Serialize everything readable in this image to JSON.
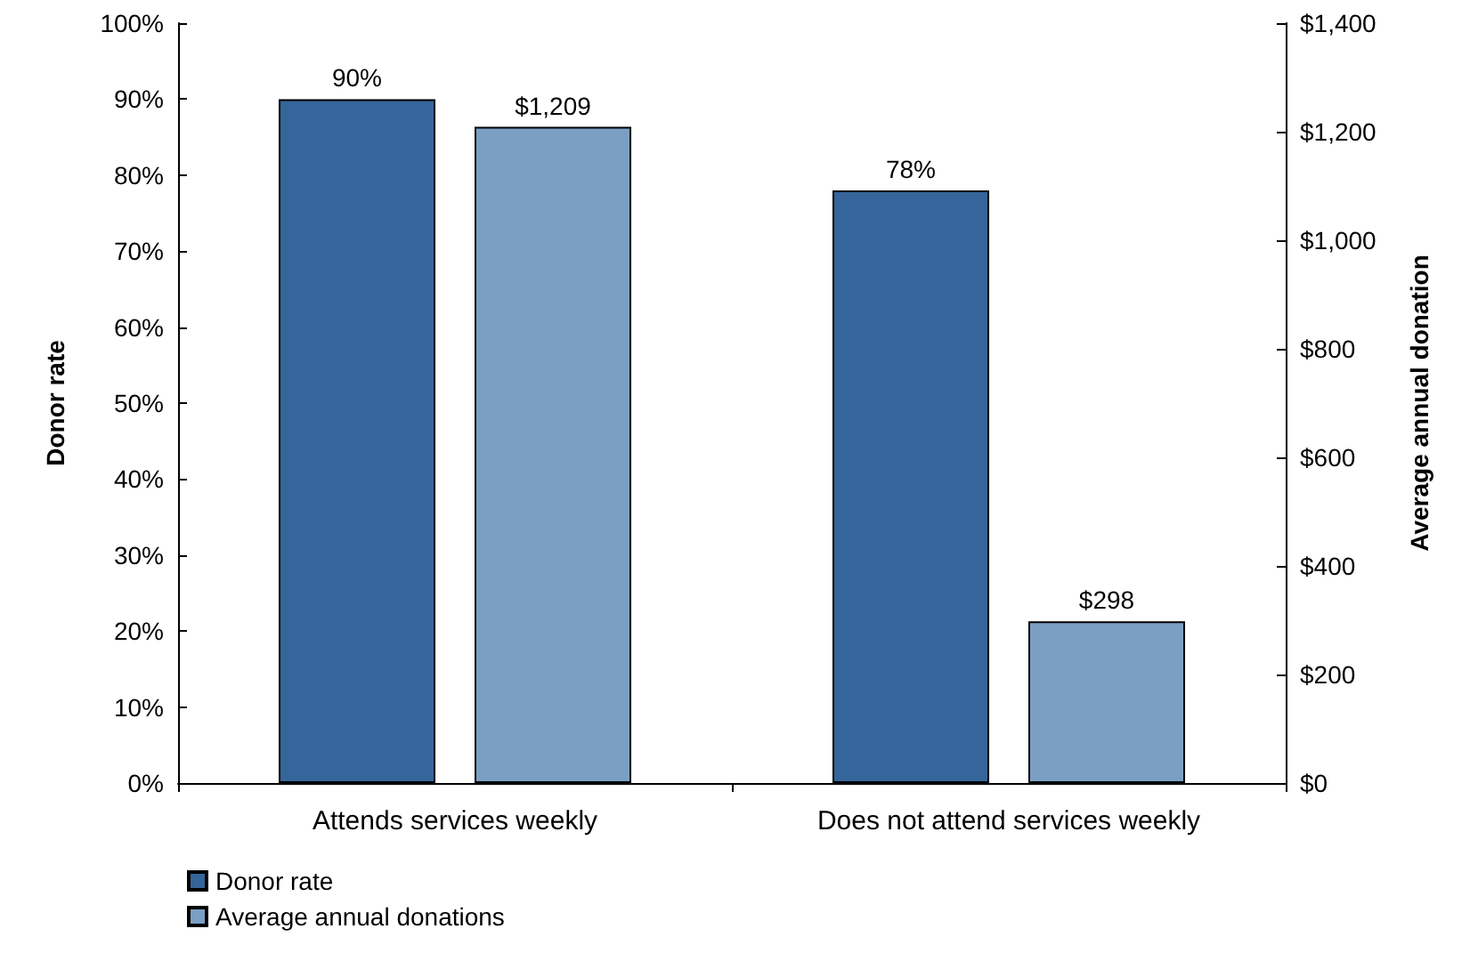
{
  "chart_data": {
    "type": "bar",
    "categories": [
      "Attends services weekly",
      "Does not attend services weekly"
    ],
    "series": [
      {
        "name": "Donor rate",
        "color": "#35659a",
        "values": [
          90,
          78
        ],
        "axis": "y",
        "value_labels": [
          "90%",
          "78%"
        ]
      },
      {
        "name": "Average annual donations",
        "color": "#7b9fc3",
        "values": [
          1209,
          298
        ],
        "axis": "y2",
        "value_labels": [
          "$1,209",
          "$298"
        ]
      }
    ],
    "ylabel": "Donor rate",
    "y2label": "Average annual donation",
    "ylim": [
      0,
      100
    ],
    "yticks": [
      {
        "value": 0,
        "label": "0%"
      },
      {
        "value": 10,
        "label": "10%"
      },
      {
        "value": 20,
        "label": "20%"
      },
      {
        "value": 30,
        "label": "30%"
      },
      {
        "value": 40,
        "label": "40%"
      },
      {
        "value": 50,
        "label": "50%"
      },
      {
        "value": 60,
        "label": "60%"
      },
      {
        "value": 70,
        "label": "70%"
      },
      {
        "value": 80,
        "label": "80%"
      },
      {
        "value": 90,
        "label": "90%"
      },
      {
        "value": 100,
        "label": "100%"
      }
    ],
    "y2lim": [
      0,
      1400
    ],
    "y2ticks": [
      {
        "value": 0,
        "label": "$0"
      },
      {
        "value": 200,
        "label": "$200"
      },
      {
        "value": 400,
        "label": "$400"
      },
      {
        "value": 600,
        "label": "$600"
      },
      {
        "value": 800,
        "label": "$800"
      },
      {
        "value": 1000,
        "label": "$1,000"
      },
      {
        "value": 1200,
        "label": "$1,200"
      },
      {
        "value": 1400,
        "label": "$1,400"
      }
    ],
    "legend": "bottom left",
    "grid": false
  }
}
